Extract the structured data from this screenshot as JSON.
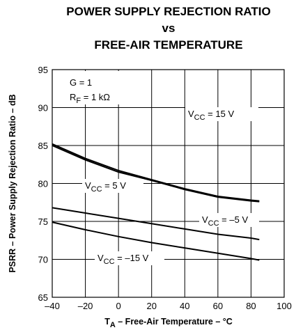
{
  "chart_data": {
    "type": "line",
    "title": [
      "POWER SUPPLY REJECTION RATIO",
      "vs",
      "FREE-AIR TEMPERATURE"
    ],
    "x_label": "TA – Free-Air Temperature – °C",
    "y_label": "PSRR – Power Supply Rejection Ratio – dB",
    "annotations": [
      "G = 1",
      "RF = 1 kΩ"
    ],
    "x": [
      -40,
      -20,
      0,
      20,
      40,
      60,
      80,
      85
    ],
    "series": [
      {
        "name": "VCC = 15 V",
        "color": "#000000",
        "values": [
          85.2,
          83.3,
          81.7,
          80.5,
          79.3,
          78.3,
          77.8,
          77.7
        ]
      },
      {
        "name": "VCC = 5 V",
        "color": "#000000",
        "values": [
          85.0,
          83.1,
          81.5,
          80.4,
          79.2,
          78.2,
          77.7,
          77.6
        ]
      },
      {
        "name": "VCC = –5 V",
        "color": "#000000",
        "values": [
          76.8,
          76.1,
          75.4,
          74.7,
          74.0,
          73.3,
          72.8,
          72.6
        ]
      },
      {
        "name": "VCC = –15 V",
        "color": "#000000",
        "values": [
          74.9,
          73.9,
          73.0,
          72.2,
          71.5,
          70.8,
          70.1,
          69.9
        ]
      }
    ],
    "xlim": [
      -40,
      100
    ],
    "xticks": [
      {
        "value": -40,
        "label": "–40"
      },
      {
        "value": -20,
        "label": "–20"
      },
      0,
      20,
      40,
      60,
      80,
      100
    ],
    "ylim": [
      65,
      95
    ],
    "yticks": [
      65,
      70,
      75,
      80,
      85,
      90,
      95
    ],
    "grid": true
  }
}
